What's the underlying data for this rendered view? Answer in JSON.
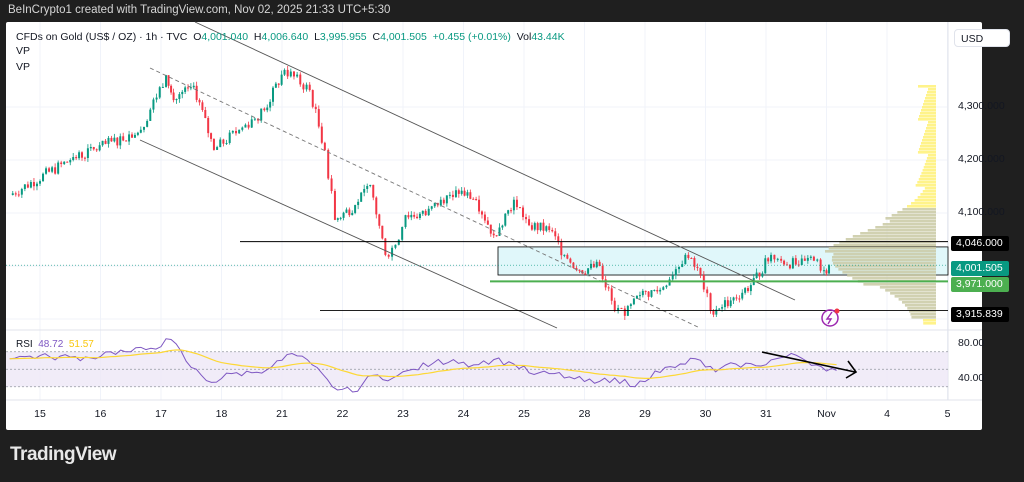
{
  "header": {
    "credit": "BeInCrypto1 created with TradingView.com, Nov 02, 2025 21:33 UTC+5:30"
  },
  "legend": {
    "symbol": "CFDs on Gold (US$ / OZ) · 1h · TVC",
    "o_label": "O",
    "o": "4,001.040",
    "h_label": "H",
    "h": "4,006.640",
    "l_label": "L",
    "l": "3,995.955",
    "c_label": "C",
    "c": "4,001.505",
    "change": "+0.455 (+0.01%)",
    "vol_label": "Vol",
    "vol": "43.44K",
    "indicators": [
      "VP",
      "VP"
    ]
  },
  "currency_button": "USD",
  "colors": {
    "up": "#089981",
    "down": "#f23645",
    "rsi": "#7e57c2",
    "rsi_ma": "#fdd835",
    "support": "#4caf50",
    "box": "#e0f7fa",
    "vp": "#fff176"
  },
  "chart_data": {
    "type": "candlestick",
    "symbol": "CFDs on Gold (US$ / OZ)",
    "interval": "1h",
    "x_ticks": [
      "15",
      "16",
      "17",
      "18",
      "21",
      "22",
      "23",
      "24",
      "25",
      "28",
      "29",
      "30",
      "31",
      "Nov",
      "4",
      "5"
    ],
    "y_ticks": [
      "4,300.000",
      "4,200.000",
      "4,100.000"
    ],
    "ylim": [
      3880,
      4400
    ],
    "price_path": [
      [
        "15",
        -12,
        4134
      ],
      [
        "15",
        12,
        4200
      ],
      [
        "16",
        16,
        4257
      ],
      [
        "17",
        2,
        4360
      ],
      [
        "17",
        5,
        4313
      ],
      [
        "17",
        13,
        4340
      ],
      [
        "17",
        21,
        4219
      ],
      [
        "18",
        7,
        4257
      ],
      [
        "18",
        17,
        4294
      ],
      [
        "21",
        1,
        4370
      ],
      [
        "21",
        11,
        4332
      ],
      [
        "21",
        17,
        4219
      ],
      [
        "21",
        21,
        4087
      ],
      [
        "22",
        5,
        4115
      ],
      [
        "22",
        11,
        4153
      ],
      [
        "22",
        17,
        4021
      ],
      [
        "22",
        21,
        4040
      ],
      [
        "23",
        1,
        4096
      ],
      [
        "23",
        9,
        4096
      ],
      [
        "23",
        15,
        4125
      ],
      [
        "23",
        21,
        4143
      ],
      [
        "24",
        5,
        4125
      ],
      [
        "24",
        12,
        4058
      ],
      [
        "24",
        20,
        4125
      ],
      [
        "25",
        2,
        4077
      ],
      [
        "25",
        10,
        4068
      ],
      [
        "25",
        16,
        4021
      ],
      [
        "25",
        22,
        3992
      ],
      [
        "28",
        6,
        4000
      ],
      [
        "28",
        12,
        3916
      ],
      [
        "28",
        16,
        3906
      ],
      [
        "28",
        22,
        3945
      ],
      [
        "29",
        6,
        3955
      ],
      [
        "29",
        16,
        4021
      ],
      [
        "29",
        22,
        3983
      ],
      [
        "30",
        2,
        3916
      ],
      [
        "30",
        10,
        3935
      ],
      [
        "30",
        18,
        3964
      ],
      [
        "31",
        2,
        4021
      ],
      [
        "31",
        6,
        4010
      ],
      [
        "31",
        13,
        4002
      ],
      [
        "31",
        19,
        4010
      ],
      [
        "31",
        23,
        3992
      ],
      [
        "Nov",
        1,
        4001.505
      ]
    ],
    "levels": [
      {
        "label": "4,046.000",
        "value": 4046,
        "color": "#000000"
      },
      {
        "label": "4,001.505",
        "value": 4001.505,
        "color": "#089981"
      },
      {
        "label": "3,971.000",
        "value": 3971,
        "color": "#4caf50"
      },
      {
        "label": "3,915.839",
        "value": 3915.839,
        "color": "#000000"
      }
    ],
    "range_box": [
      3983,
      4036
    ],
    "rsi": {
      "label": "RSI",
      "value": "48.72",
      "ma_value": "51.57",
      "y_ticks": [
        "80.00",
        "40.00"
      ],
      "bands": [
        70,
        50,
        30
      ],
      "ylim": [
        15,
        95
      ],
      "start": [
        "15",
        -12
      ],
      "step_hours": 8,
      "values": [
        62,
        65,
        64,
        64,
        63,
        70,
        70,
        74,
        84,
        52,
        35,
        45,
        46,
        53,
        68,
        55,
        30,
        24,
        43,
        40,
        50,
        57,
        61,
        55,
        61,
        56,
        44,
        45,
        39,
        34,
        40,
        30,
        48,
        52,
        62,
        47,
        56,
        54,
        62,
        66,
        55,
        48.72
      ]
    }
  },
  "footer": {
    "logo": "TradingView"
  }
}
